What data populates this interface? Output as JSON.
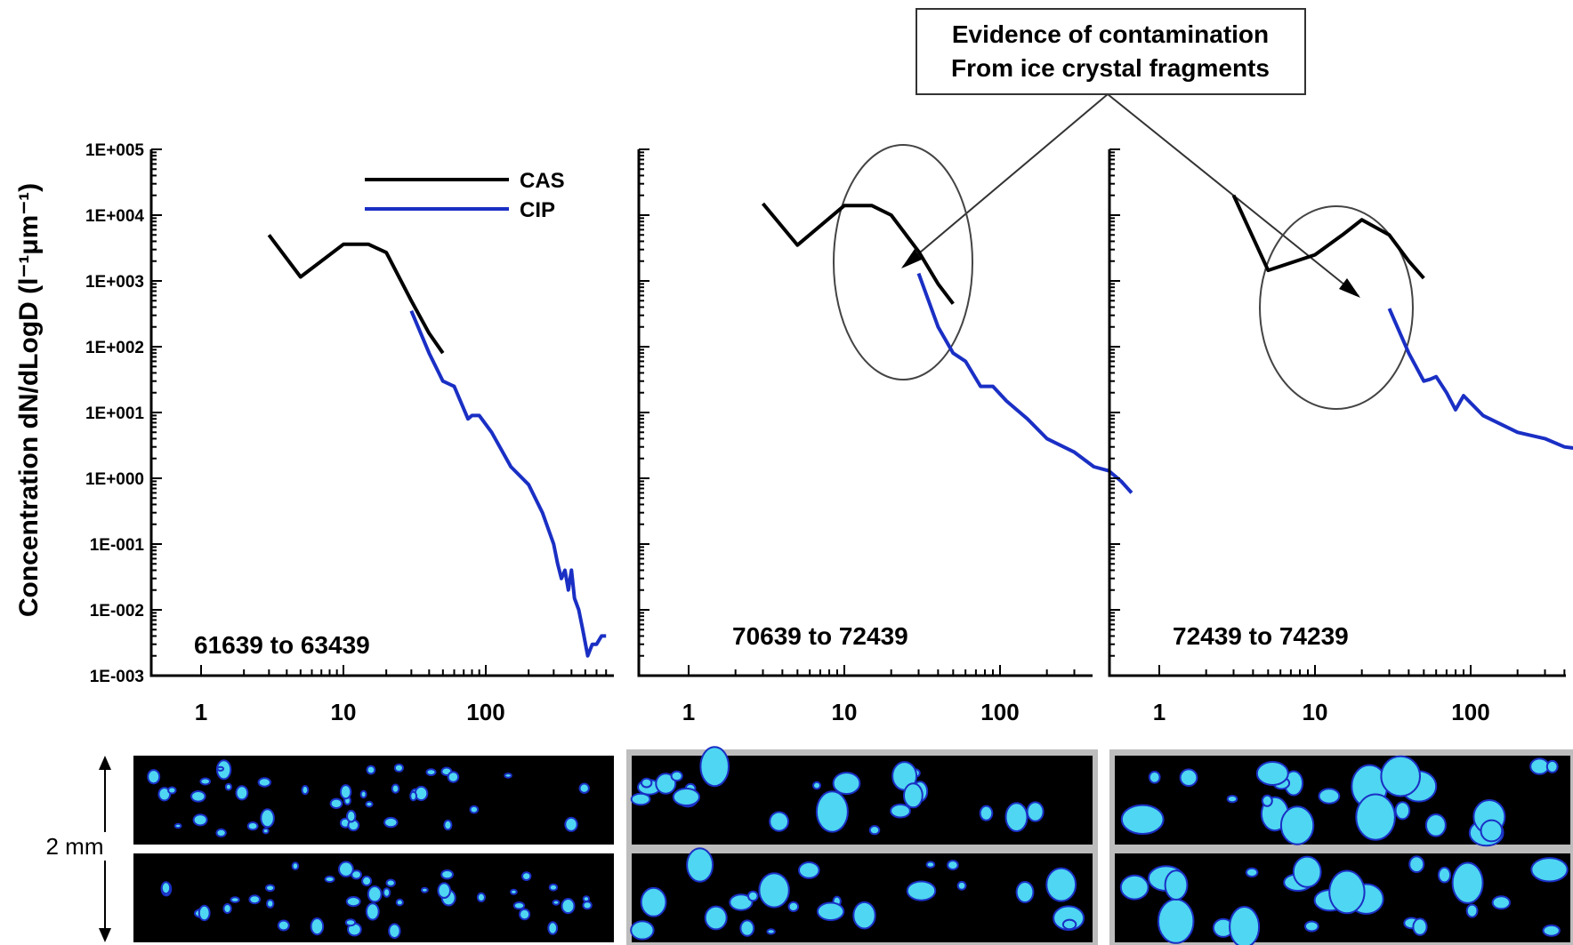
{
  "annotation": {
    "lines": [
      "Evidence of contamination",
      "From ice crystal fragments"
    ]
  },
  "y_axis_label": "Concentration dN/dLogD (l⁻¹μm⁻¹)",
  "scale_label": "2 mm",
  "colors": {
    "CAS": "#000000",
    "CIP": "#1a2fc4",
    "particle": "#4fd6f2",
    "image_bg": "#000000"
  },
  "chart_data": [
    {
      "type": "line",
      "title": "",
      "annotation_label": "61639 to 63439",
      "xscale": "log",
      "yscale": "log",
      "xlim": [
        1,
        800
      ],
      "ylim": [
        0.001,
        100000
      ],
      "x_ticks": [
        "1",
        "10",
        "100"
      ],
      "y_ticks": [
        "1E+005",
        "1E+004",
        "1E+003",
        "1E+002",
        "1E+001",
        "1E+000",
        "1E-001",
        "1E-002",
        "1E-003"
      ],
      "legend": {
        "placement": "top-right",
        "entries": [
          "CAS",
          "CIP"
        ]
      },
      "series": [
        {
          "name": "CAS",
          "x": [
            3,
            5,
            10,
            15,
            20,
            30,
            40,
            50
          ],
          "y": [
            5000,
            1150,
            3600,
            3600,
            2700,
            500,
            160,
            80
          ]
        },
        {
          "name": "CIP",
          "x": [
            30,
            40,
            50,
            60,
            75,
            80,
            90,
            110,
            150,
            200,
            250,
            300,
            320,
            340,
            360,
            380,
            400,
            420,
            450,
            480,
            520,
            560,
            600,
            650,
            700
          ],
          "y": [
            350,
            80,
            30,
            25,
            8,
            9,
            9,
            5,
            1.5,
            0.8,
            0.3,
            0.1,
            0.05,
            0.03,
            0.04,
            0.02,
            0.04,
            0.015,
            0.01,
            0.005,
            0.002,
            0.003,
            0.003,
            0.004,
            0.004
          ]
        }
      ]
    },
    {
      "type": "line",
      "title": "",
      "annotation_label": "70639 to 72439",
      "xscale": "log",
      "yscale": "log",
      "xlim": [
        1,
        800
      ],
      "ylim": [
        0.001,
        100000
      ],
      "x_ticks": [
        "1",
        "10",
        "100"
      ],
      "series": [
        {
          "name": "CAS",
          "x": [
            3,
            5,
            10,
            15,
            20,
            30,
            40,
            50
          ],
          "y": [
            15000,
            3500,
            14000,
            14000,
            10000,
            2800,
            900,
            450
          ]
        },
        {
          "name": "CIP",
          "x": [
            30,
            40,
            50,
            60,
            75,
            80,
            90,
            110,
            150,
            200,
            300,
            400,
            500,
            600,
            700
          ],
          "y": [
            1300,
            200,
            80,
            60,
            25,
            25,
            25,
            15,
            8,
            4,
            2.5,
            1.5,
            1.3,
            0.9,
            0.6
          ]
        }
      ]
    },
    {
      "type": "line",
      "title": "",
      "annotation_label": "72439 to 74239",
      "xscale": "log",
      "yscale": "log",
      "xlim": [
        1,
        800
      ],
      "ylim": [
        0.001,
        100000
      ],
      "x_ticks": [
        "1",
        "10",
        "100"
      ],
      "series": [
        {
          "name": "CAS",
          "x": [
            3,
            5,
            10,
            15,
            20,
            30,
            40,
            50
          ],
          "y": [
            20000,
            1450,
            2500,
            5000,
            8500,
            5000,
            2000,
            1100
          ]
        },
        {
          "name": "CIP",
          "x": [
            30,
            40,
            50,
            55,
            60,
            70,
            80,
            90,
            120,
            200,
            300,
            400,
            500,
            600,
            700
          ],
          "y": [
            380,
            80,
            30,
            32,
            35,
            20,
            11,
            18,
            9,
            5,
            4,
            3,
            2.8,
            1.8,
            1.9
          ]
        }
      ]
    }
  ]
}
